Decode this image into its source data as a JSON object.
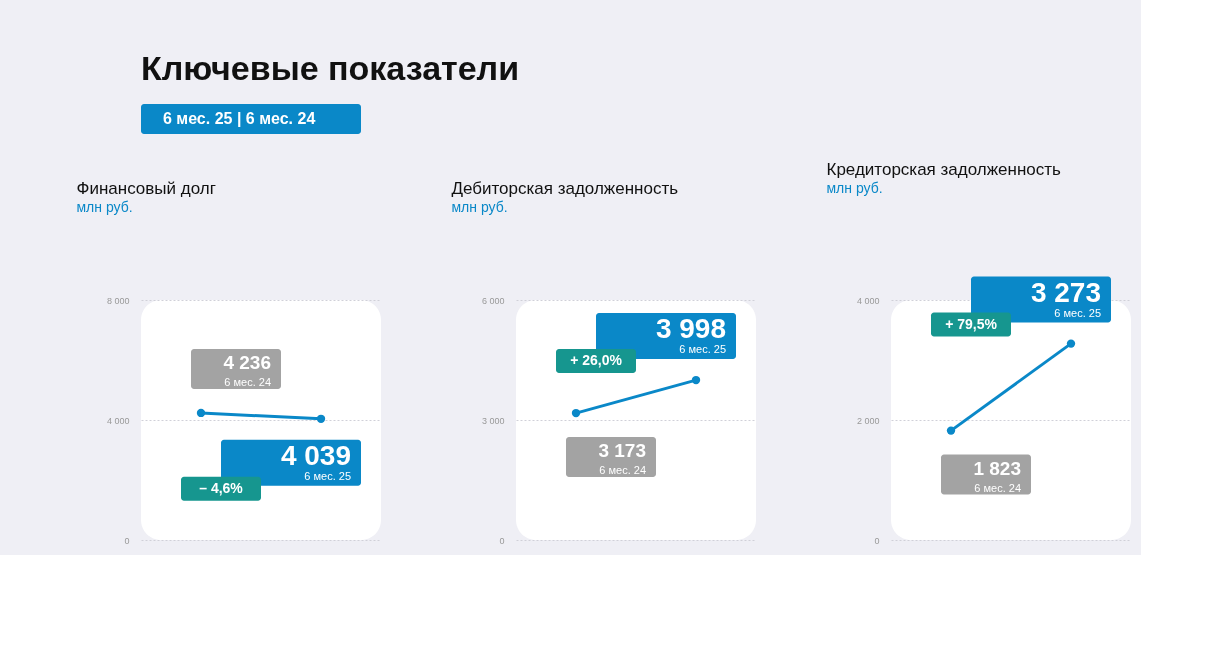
{
  "chart_data": [
    {
      "type": "line",
      "title": "Финансовый долг",
      "subtitle": "млн руб.",
      "categories": [
        null,
        null
      ],
      "series": [
        {
          "color": "#0a88c8",
          "values": [
            4236,
            4039
          ]
        }
      ],
      "value_labels": [
        "4 236",
        "4 039"
      ],
      "annotations": [
        "Ключевые показатели",
        "6 мес. 25 | 6 мес. 24",
        "6 мес. 24",
        "6 мес. 25",
        "– 4,6%"
      ],
      "ylim": [
        0,
        8000
      ],
      "yticks": [
        0,
        {
          "value": 4000,
          "label": "4 000"
        },
        {
          "value": 8000,
          "label": "8 000"
        }
      ],
      "grid": "y",
      "marker": "circle",
      "tick_labels": "y"
    },
    {
      "type": "line",
      "title": "Дебиторская задолженность",
      "subtitle": "млн руб.",
      "categories": [
        null,
        null
      ],
      "series": [
        {
          "color": "#0a88c8",
          "values": [
            3173,
            3998
          ]
        }
      ],
      "value_labels": [
        "3 173",
        "3 998"
      ],
      "annotations": [
        "6 мес. 24",
        "6 мес. 25",
        "+ 26,0%"
      ],
      "ylim": [
        0,
        6000
      ],
      "yticks": [
        0,
        {
          "value": 3000,
          "label": "3 000"
        },
        {
          "value": 6000,
          "label": "6 000"
        }
      ],
      "grid": "y",
      "marker": "circle",
      "tick_labels": "y"
    },
    {
      "type": "line",
      "title": "Кредиторская задолженность",
      "subtitle": "млн руб.",
      "categories": [
        null,
        null
      ],
      "series": [
        {
          "color": "#0a88c8",
          "values": [
            1823,
            3273
          ]
        }
      ],
      "value_labels": [
        "1 823",
        "3 273"
      ],
      "annotations": [
        "6 мес. 24",
        "6 мес. 25",
        "+ 79,5%"
      ],
      "ylim": [
        0,
        4000
      ],
      "yticks": [
        0,
        {
          "value": 2000,
          "label": "2 000"
        },
        {
          "value": 4000,
          "label": "4 000"
        }
      ],
      "grid": "y",
      "marker": "circle",
      "tick_labels": "y"
    }
  ]
}
